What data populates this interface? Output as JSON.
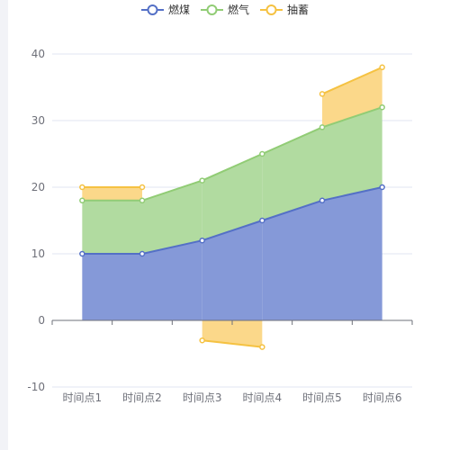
{
  "chart_data": {
    "type": "area",
    "stacked": true,
    "categories": [
      "时间点1",
      "时间点2",
      "时间点3",
      "时间点4",
      "时间点5",
      "时间点6"
    ],
    "series": [
      {
        "name": "燃煤",
        "values": [
          10,
          10,
          12,
          15,
          18,
          20
        ],
        "color": "#5470c6",
        "fill": "#8599d8"
      },
      {
        "name": "燃气",
        "values": [
          8,
          8,
          9,
          10,
          11,
          12
        ],
        "color": "#91cc75",
        "fill": "#b1dba0"
      },
      {
        "name": "抽蓄",
        "values": [
          2,
          2,
          -3,
          -4,
          5,
          6
        ],
        "color": "#f5c242",
        "fill": "#fbd88a"
      }
    ],
    "title": "",
    "xlabel": "",
    "ylabel": "",
    "ylim": [
      -10,
      40
    ],
    "yticks": [
      -10,
      0,
      10,
      20,
      30,
      40
    ],
    "grid": true,
    "legend": "top-center"
  }
}
